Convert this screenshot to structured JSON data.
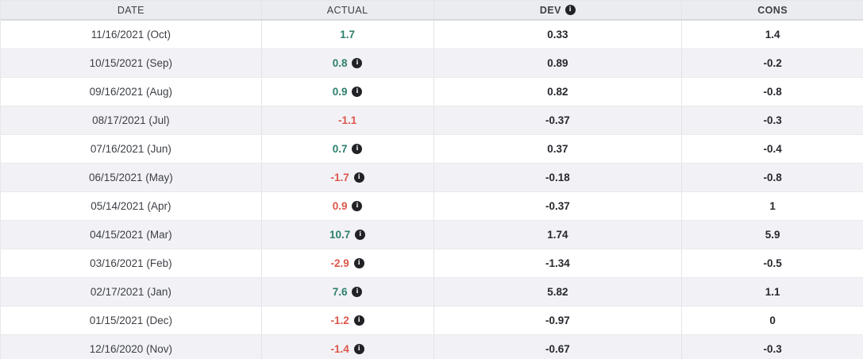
{
  "colors": {
    "positive_value": "#2d7f6d",
    "negative_value": "#dc564b",
    "header_background": "#ebecf0",
    "row_stripe_background": "#f2f2f6",
    "info_icon_background": "#212226"
  },
  "icons": {
    "info_glyph": "i"
  },
  "table": {
    "columns": [
      {
        "key": "date",
        "label": "DATE",
        "has_info_icon": false
      },
      {
        "key": "actual",
        "label": "ACTUAL",
        "has_info_icon": false
      },
      {
        "key": "dev",
        "label": "DEV",
        "has_info_icon": true
      },
      {
        "key": "cons",
        "label": "CONS",
        "has_info_icon": false
      }
    ],
    "rows": [
      {
        "date": "11/16/2021 (Oct)",
        "actual": "1.7",
        "trend": "positive",
        "actual_info_icon": false,
        "dev": "0.33",
        "cons": "1.4"
      },
      {
        "date": "10/15/2021 (Sep)",
        "actual": "0.8",
        "trend": "positive",
        "actual_info_icon": true,
        "dev": "0.89",
        "cons": "-0.2"
      },
      {
        "date": "09/16/2021 (Aug)",
        "actual": "0.9",
        "trend": "positive",
        "actual_info_icon": true,
        "dev": "0.82",
        "cons": "-0.8"
      },
      {
        "date": "08/17/2021 (Jul)",
        "actual": "-1.1",
        "trend": "negative",
        "actual_info_icon": false,
        "dev": "-0.37",
        "cons": "-0.3"
      },
      {
        "date": "07/16/2021 (Jun)",
        "actual": "0.7",
        "trend": "positive",
        "actual_info_icon": true,
        "dev": "0.37",
        "cons": "-0.4"
      },
      {
        "date": "06/15/2021 (May)",
        "actual": "-1.7",
        "trend": "negative",
        "actual_info_icon": true,
        "dev": "-0.18",
        "cons": "-0.8"
      },
      {
        "date": "05/14/2021 (Apr)",
        "actual": "0.9",
        "trend": "negative",
        "actual_info_icon": true,
        "dev": "-0.37",
        "cons": "1"
      },
      {
        "date": "04/15/2021 (Mar)",
        "actual": "10.7",
        "trend": "positive",
        "actual_info_icon": true,
        "dev": "1.74",
        "cons": "5.9"
      },
      {
        "date": "03/16/2021 (Feb)",
        "actual": "-2.9",
        "trend": "negative",
        "actual_info_icon": true,
        "dev": "-1.34",
        "cons": "-0.5"
      },
      {
        "date": "02/17/2021 (Jan)",
        "actual": "7.6",
        "trend": "positive",
        "actual_info_icon": true,
        "dev": "5.82",
        "cons": "1.1"
      },
      {
        "date": "01/15/2021 (Dec)",
        "actual": "-1.2",
        "trend": "negative",
        "actual_info_icon": true,
        "dev": "-0.97",
        "cons": "0"
      },
      {
        "date": "12/16/2020 (Nov)",
        "actual": "-1.4",
        "trend": "negative",
        "actual_info_icon": true,
        "dev": "-0.67",
        "cons": "-0.3"
      }
    ]
  }
}
